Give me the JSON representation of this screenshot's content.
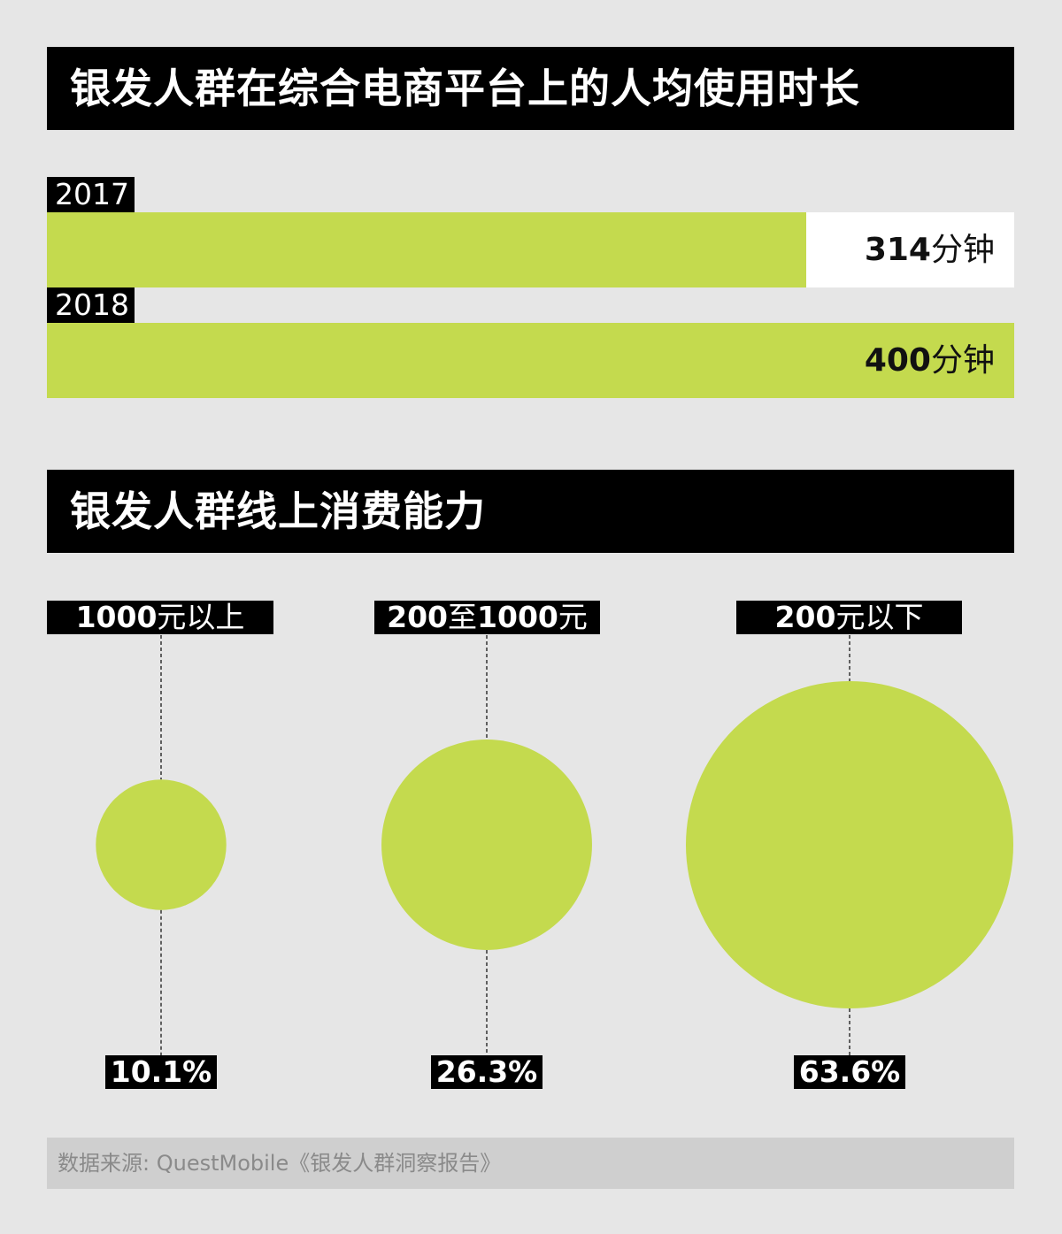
{
  "section1": {
    "title": "银发人群在综合电商平台上的人均使用时长"
  },
  "section2": {
    "title": "银发人群线上消费能力"
  },
  "colors": {
    "accent": "#c4da4e",
    "dark": "#000000",
    "track": "#ffffff",
    "background": "#e6e6e6"
  },
  "chart_data": [
    {
      "type": "bar",
      "orientation": "horizontal",
      "title": "银发人群在综合电商平台上的人均使用时长",
      "categories": [
        "2017",
        "2018"
      ],
      "values": [
        314,
        400
      ],
      "value_labels": [
        {
          "number": "314",
          "unit": "分钟"
        },
        {
          "number": "400",
          "unit": "分钟"
        }
      ],
      "xlim": [
        0,
        400
      ]
    },
    {
      "type": "bubble",
      "title": "银发人群线上消费能力",
      "categories": [
        {
          "number": "1000",
          "text": "元以上"
        },
        {
          "number": "200",
          "text": "至",
          "number2": "1000",
          "text2": "元"
        },
        {
          "number": "200",
          "text": "元以下"
        }
      ],
      "values": [
        10.1,
        26.3,
        63.6
      ],
      "value_labels": [
        "10.1%",
        "26.3%",
        "63.6%"
      ]
    }
  ],
  "source": {
    "text": "数据来源: QuestMobile《银发人群洞察报告》"
  }
}
